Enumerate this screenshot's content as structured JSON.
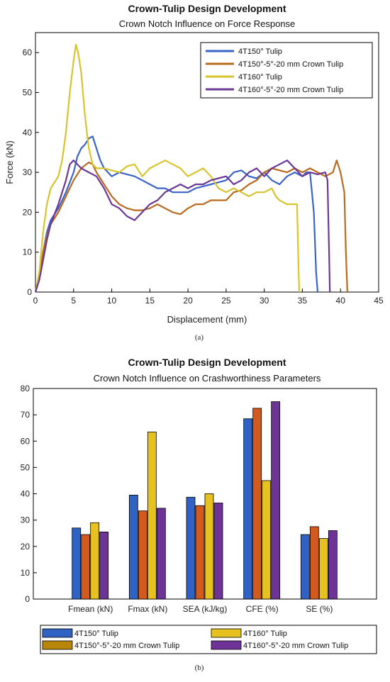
{
  "chart_data": [
    {
      "type": "line",
      "title": "Crown-Tulip Design Development",
      "subtitle": "Crown Notch Influence on Force Response",
      "xlabel": "Displacement (mm)",
      "ylabel": "Force (kN)",
      "xlim": [
        0,
        45
      ],
      "ylim": [
        0,
        65
      ],
      "xticks": [
        0,
        5,
        10,
        15,
        20,
        25,
        30,
        35,
        40,
        45
      ],
      "yticks": [
        0,
        10,
        20,
        30,
        40,
        50,
        60
      ],
      "legend_position": "top-right",
      "caption": "(a)",
      "series": [
        {
          "name": "4T150° Tulip",
          "color": "#3a64c8",
          "points": [
            [
              0,
              0
            ],
            [
              0.5,
              4
            ],
            [
              1,
              10
            ],
            [
              1.5,
              15
            ],
            [
              2,
              18
            ],
            [
              3,
              21
            ],
            [
              4,
              25
            ],
            [
              5,
              30
            ],
            [
              5.5,
              34
            ],
            [
              6,
              36
            ],
            [
              6.5,
              37
            ],
            [
              7,
              38.5
            ],
            [
              7.5,
              39
            ],
            [
              8,
              36
            ],
            [
              8.5,
              33
            ],
            [
              9,
              31
            ],
            [
              10,
              29
            ],
            [
              11,
              30
            ],
            [
              12,
              29.5
            ],
            [
              13,
              29
            ],
            [
              14,
              28
            ],
            [
              15,
              27
            ],
            [
              16,
              26
            ],
            [
              17,
              26
            ],
            [
              18,
              25
            ],
            [
              19,
              25
            ],
            [
              20,
              25
            ],
            [
              21,
              26
            ],
            [
              22,
              26.5
            ],
            [
              23,
              27
            ],
            [
              24,
              27.5
            ],
            [
              25,
              28
            ],
            [
              26,
              30
            ],
            [
              27,
              30.5
            ],
            [
              28,
              29
            ],
            [
              29,
              28.5
            ],
            [
              30,
              30
            ],
            [
              31,
              28
            ],
            [
              32,
              27
            ],
            [
              33,
              29
            ],
            [
              34,
              30
            ],
            [
              35,
              29
            ],
            [
              35.5,
              30
            ],
            [
              36,
              30
            ],
            [
              36.5,
              20
            ],
            [
              36.8,
              5
            ],
            [
              37,
              0
            ]
          ]
        },
        {
          "name": "4T150°-5°-20 mm Crown Tulip",
          "color": "#b86a1e",
          "points": [
            [
              0,
              0
            ],
            [
              0.5,
              4
            ],
            [
              1,
              10
            ],
            [
              1.5,
              14
            ],
            [
              2,
              17
            ],
            [
              3,
              20
            ],
            [
              4,
              24
            ],
            [
              5,
              28
            ],
            [
              6,
              31
            ],
            [
              7,
              32.5
            ],
            [
              7.5,
              32
            ],
            [
              8,
              30
            ],
            [
              9,
              27
            ],
            [
              10,
              24
            ],
            [
              11,
              22
            ],
            [
              12,
              21
            ],
            [
              13,
              20.5
            ],
            [
              14,
              20.5
            ],
            [
              15,
              21
            ],
            [
              16,
              22
            ],
            [
              17,
              21
            ],
            [
              18,
              20
            ],
            [
              19,
              19.5
            ],
            [
              20,
              21
            ],
            [
              21,
              22
            ],
            [
              22,
              22
            ],
            [
              23,
              23
            ],
            [
              24,
              23
            ],
            [
              25,
              23
            ],
            [
              26,
              25
            ],
            [
              27,
              25.5
            ],
            [
              28,
              27
            ],
            [
              29,
              28
            ],
            [
              30,
              30
            ],
            [
              31,
              31
            ],
            [
              32,
              30.5
            ],
            [
              33,
              30
            ],
            [
              34,
              31
            ],
            [
              35,
              30
            ],
            [
              36,
              31
            ],
            [
              37,
              30
            ],
            [
              38,
              29
            ],
            [
              39,
              30
            ],
            [
              39.5,
              33
            ],
            [
              40,
              30
            ],
            [
              40.5,
              25
            ],
            [
              40.7,
              10
            ],
            [
              40.9,
              0
            ]
          ]
        },
        {
          "name": "4T160° Tulip",
          "color": "#d7c42e",
          "points": [
            [
              0,
              0
            ],
            [
              0.5,
              5
            ],
            [
              1,
              15
            ],
            [
              1.5,
              22
            ],
            [
              2,
              26
            ],
            [
              3,
              29
            ],
            [
              3.5,
              33
            ],
            [
              4,
              40
            ],
            [
              4.5,
              50
            ],
            [
              5,
              58
            ],
            [
              5.3,
              62
            ],
            [
              5.6,
              60
            ],
            [
              6,
              55
            ],
            [
              6.5,
              44
            ],
            [
              7,
              36
            ],
            [
              7.5,
              32
            ],
            [
              8,
              31
            ],
            [
              9,
              31
            ],
            [
              10,
              30.5
            ],
            [
              11,
              30
            ],
            [
              12,
              31.5
            ],
            [
              13,
              32
            ],
            [
              14,
              29
            ],
            [
              15,
              31
            ],
            [
              16,
              32
            ],
            [
              17,
              33
            ],
            [
              18,
              32
            ],
            [
              19,
              31
            ],
            [
              20,
              29
            ],
            [
              21,
              30
            ],
            [
              22,
              31
            ],
            [
              23,
              29
            ],
            [
              24,
              26
            ],
            [
              25,
              25
            ],
            [
              26,
              26
            ],
            [
              27,
              25
            ],
            [
              28,
              24
            ],
            [
              29,
              25
            ],
            [
              30,
              25
            ],
            [
              31,
              26
            ],
            [
              31.5,
              24
            ],
            [
              32,
              23
            ],
            [
              33,
              22
            ],
            [
              34,
              22
            ],
            [
              34.3,
              22
            ],
            [
              34.5,
              5
            ],
            [
              34.6,
              0
            ]
          ]
        },
        {
          "name": "4T160°-5°-20 mm Crown Tulip",
          "color": "#6b3895",
          "points": [
            [
              0,
              0
            ],
            [
              0.5,
              3
            ],
            [
              1,
              8
            ],
            [
              1.5,
              13
            ],
            [
              2,
              17
            ],
            [
              3,
              22
            ],
            [
              4,
              28
            ],
            [
              4.5,
              32
            ],
            [
              5,
              33
            ],
            [
              6,
              31
            ],
            [
              7,
              30
            ],
            [
              8,
              29
            ],
            [
              9,
              26
            ],
            [
              10,
              22
            ],
            [
              11,
              21
            ],
            [
              12,
              19
            ],
            [
              13,
              18
            ],
            [
              14,
              20
            ],
            [
              15,
              22
            ],
            [
              16,
              23
            ],
            [
              17,
              25
            ],
            [
              18,
              26
            ],
            [
              19,
              27
            ],
            [
              20,
              26
            ],
            [
              21,
              27
            ],
            [
              22,
              27
            ],
            [
              23,
              28
            ],
            [
              24,
              28.5
            ],
            [
              25,
              29
            ],
            [
              26,
              27
            ],
            [
              27,
              28
            ],
            [
              28,
              30
            ],
            [
              29,
              31
            ],
            [
              30,
              29
            ],
            [
              31,
              31
            ],
            [
              32,
              32
            ],
            [
              33,
              33
            ],
            [
              34,
              31
            ],
            [
              35,
              29
            ],
            [
              36,
              30
            ],
            [
              37,
              29.5
            ],
            [
              38,
              30
            ],
            [
              38.3,
              28
            ],
            [
              38.5,
              10
            ],
            [
              38.6,
              0
            ]
          ]
        }
      ]
    },
    {
      "type": "bar",
      "title": "Crown-Tulip Design Development",
      "subtitle": "Crown Notch Influence on Crashworthiness Parameters",
      "categories": [
        "Fmean (kN)",
        "Fmax (kN)",
        "SEA (kJ/kg)",
        "CFE (%)",
        "SE (%)"
      ],
      "ylim": [
        0,
        80
      ],
      "yticks": [
        0,
        10,
        20,
        30,
        40,
        50,
        60,
        70,
        80
      ],
      "legend_position": "bottom",
      "caption": "(b)",
      "series": [
        {
          "name": "4T150° Tulip",
          "color": "#2f62c2",
          "values": [
            27,
            39.5,
            38.7,
            68.5,
            24.5
          ]
        },
        {
          "name": "4T150°-5°-20 mm Crown Tulip",
          "color": "#d35a1f",
          "values": [
            24.5,
            33.5,
            35.5,
            72.5,
            27.5
          ]
        },
        {
          "name": "4T160° Tulip",
          "color": "#e6c11f",
          "values": [
            29,
            63.5,
            40,
            45,
            23
          ]
        },
        {
          "name": "4T160°-5°-20 mm Crown Tulip",
          "color": "#6e3396",
          "values": [
            25.5,
            34.5,
            36.5,
            75,
            26
          ]
        }
      ],
      "legend_order": [
        0,
        2,
        1,
        3
      ],
      "legend_swatch_colors": [
        "#2f62c2",
        "#e6c11f",
        "#b8860b",
        "#6e3396"
      ]
    }
  ]
}
